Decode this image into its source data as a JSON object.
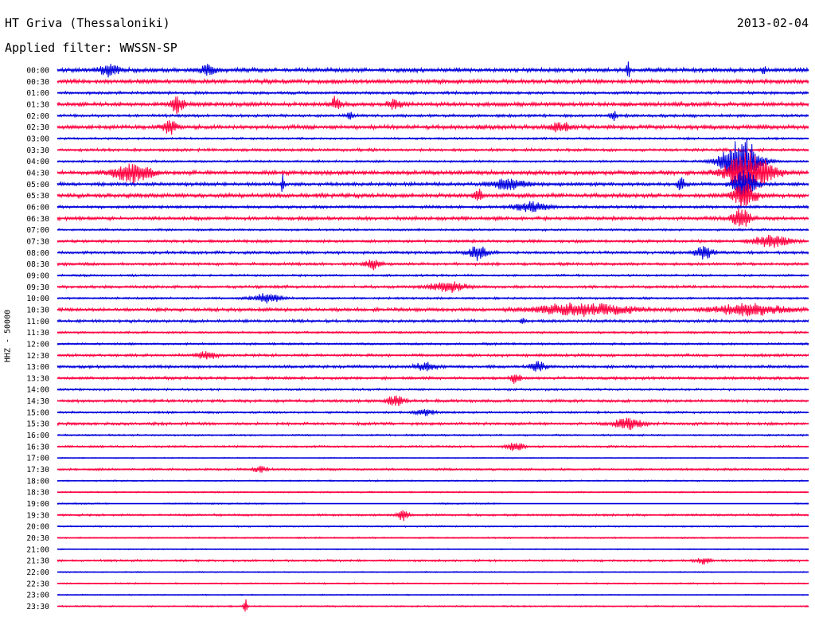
{
  "header": {
    "station": "HT Griva (Thessaloniki)",
    "date": "2013-02-04",
    "filter": "Applied filter: WWSSN-SP",
    "channel": "HHZ - 50000"
  },
  "chart_data": {
    "type": "line",
    "title": "HT Griva (Thessaloniki)",
    "xlabel": "",
    "ylabel": "HHZ - 50000",
    "grid": false,
    "colors": [
      "#0000dd",
      "#ff0040"
    ],
    "rows": [
      "00:00",
      "00:30",
      "01:00",
      "01:30",
      "02:00",
      "02:30",
      "03:00",
      "03:30",
      "04:00",
      "04:30",
      "05:00",
      "05:30",
      "06:00",
      "06:30",
      "07:00",
      "07:30",
      "08:00",
      "08:30",
      "09:00",
      "09:30",
      "10:00",
      "10:30",
      "11:00",
      "11:30",
      "12:00",
      "12:30",
      "13:00",
      "13:30",
      "14:00",
      "14:30",
      "15:00",
      "15:30",
      "16:00",
      "16:30",
      "17:00",
      "17:30",
      "18:00",
      "18:30",
      "19:00",
      "19:30",
      "20:00",
      "20:30",
      "21:00",
      "21:30",
      "22:00",
      "22:30",
      "23:00",
      "23:30"
    ],
    "noise": [
      3,
      3,
      2,
      3,
      2,
      3,
      1.5,
      2,
      1.5,
      3,
      2.5,
      3,
      2,
      2.5,
      1.5,
      2,
      2,
      2,
      1.5,
      2,
      1.5,
      2.5,
      2,
      1.5,
      1.5,
      2,
      2,
      2,
      1.5,
      2,
      1.5,
      2,
      1.2,
      1.5,
      0.8,
      1.5,
      1,
      1,
      1,
      1.5,
      1,
      1,
      0.8,
      1.5,
      0.8,
      1,
      0.8,
      1
    ],
    "events": [
      {
        "row": 0,
        "x": 0.07,
        "amp": 8,
        "w": 0.01
      },
      {
        "row": 0,
        "x": 0.2,
        "amp": 6,
        "w": 0.01
      },
      {
        "row": 0,
        "x": 0.76,
        "amp": 14,
        "w": 0.002
      },
      {
        "row": 0,
        "x": 0.94,
        "amp": 6,
        "w": 0.002
      },
      {
        "row": 3,
        "x": 0.16,
        "amp": 10,
        "w": 0.008
      },
      {
        "row": 3,
        "x": 0.37,
        "amp": 8,
        "w": 0.005
      },
      {
        "row": 3,
        "x": 0.45,
        "amp": 6,
        "w": 0.008
      },
      {
        "row": 4,
        "x": 0.39,
        "amp": 5,
        "w": 0.003
      },
      {
        "row": 4,
        "x": 0.74,
        "amp": 7,
        "w": 0.003
      },
      {
        "row": 5,
        "x": 0.15,
        "amp": 8,
        "w": 0.008
      },
      {
        "row": 5,
        "x": 0.67,
        "amp": 6,
        "w": 0.01
      },
      {
        "row": 8,
        "x": 0.91,
        "amp": 30,
        "w": 0.02
      },
      {
        "row": 9,
        "x": 0.1,
        "amp": 12,
        "w": 0.02
      },
      {
        "row": 9,
        "x": 0.92,
        "amp": 25,
        "w": 0.025
      },
      {
        "row": 10,
        "x": 0.3,
        "amp": 12,
        "w": 0.002
      },
      {
        "row": 10,
        "x": 0.6,
        "amp": 6,
        "w": 0.02
      },
      {
        "row": 10,
        "x": 0.83,
        "amp": 9,
        "w": 0.004
      },
      {
        "row": 10,
        "x": 0.915,
        "amp": 18,
        "w": 0.012
      },
      {
        "row": 11,
        "x": 0.56,
        "amp": 10,
        "w": 0.004
      },
      {
        "row": 11,
        "x": 0.915,
        "amp": 15,
        "w": 0.012
      },
      {
        "row": 12,
        "x": 0.63,
        "amp": 6,
        "w": 0.02
      },
      {
        "row": 13,
        "x": 0.91,
        "amp": 12,
        "w": 0.01
      },
      {
        "row": 15,
        "x": 0.95,
        "amp": 7,
        "w": 0.02
      },
      {
        "row": 16,
        "x": 0.56,
        "amp": 9,
        "w": 0.01
      },
      {
        "row": 16,
        "x": 0.86,
        "amp": 9,
        "w": 0.01
      },
      {
        "row": 17,
        "x": 0.42,
        "amp": 6,
        "w": 0.008
      },
      {
        "row": 19,
        "x": 0.52,
        "amp": 6,
        "w": 0.02
      },
      {
        "row": 20,
        "x": 0.28,
        "amp": 6,
        "w": 0.015
      },
      {
        "row": 21,
        "x": 0.7,
        "amp": 8,
        "w": 0.05
      },
      {
        "row": 21,
        "x": 0.92,
        "amp": 7,
        "w": 0.04
      },
      {
        "row": 22,
        "x": 0.62,
        "amp": 7,
        "w": 0.002
      },
      {
        "row": 25,
        "x": 0.2,
        "amp": 5,
        "w": 0.01
      },
      {
        "row": 26,
        "x": 0.49,
        "amp": 6,
        "w": 0.01
      },
      {
        "row": 26,
        "x": 0.64,
        "amp": 7,
        "w": 0.008
      },
      {
        "row": 27,
        "x": 0.61,
        "amp": 7,
        "w": 0.005
      },
      {
        "row": 29,
        "x": 0.45,
        "amp": 6,
        "w": 0.01
      },
      {
        "row": 30,
        "x": 0.49,
        "amp": 4,
        "w": 0.01
      },
      {
        "row": 31,
        "x": 0.76,
        "amp": 7,
        "w": 0.015
      },
      {
        "row": 33,
        "x": 0.61,
        "amp": 5,
        "w": 0.01
      },
      {
        "row": 35,
        "x": 0.27,
        "amp": 4,
        "w": 0.008
      },
      {
        "row": 39,
        "x": 0.46,
        "amp": 7,
        "w": 0.006
      },
      {
        "row": 43,
        "x": 0.86,
        "amp": 4,
        "w": 0.008
      },
      {
        "row": 47,
        "x": 0.25,
        "amp": 11,
        "w": 0.002
      }
    ],
    "clipped": [
      {
        "row": 38,
        "x1": 0.07,
        "x2": 0.14
      },
      {
        "row": 38,
        "x1": 0.33,
        "x2": 0.5
      },
      {
        "row": 38,
        "x1": 0.59,
        "x2": 0.98
      }
    ]
  }
}
